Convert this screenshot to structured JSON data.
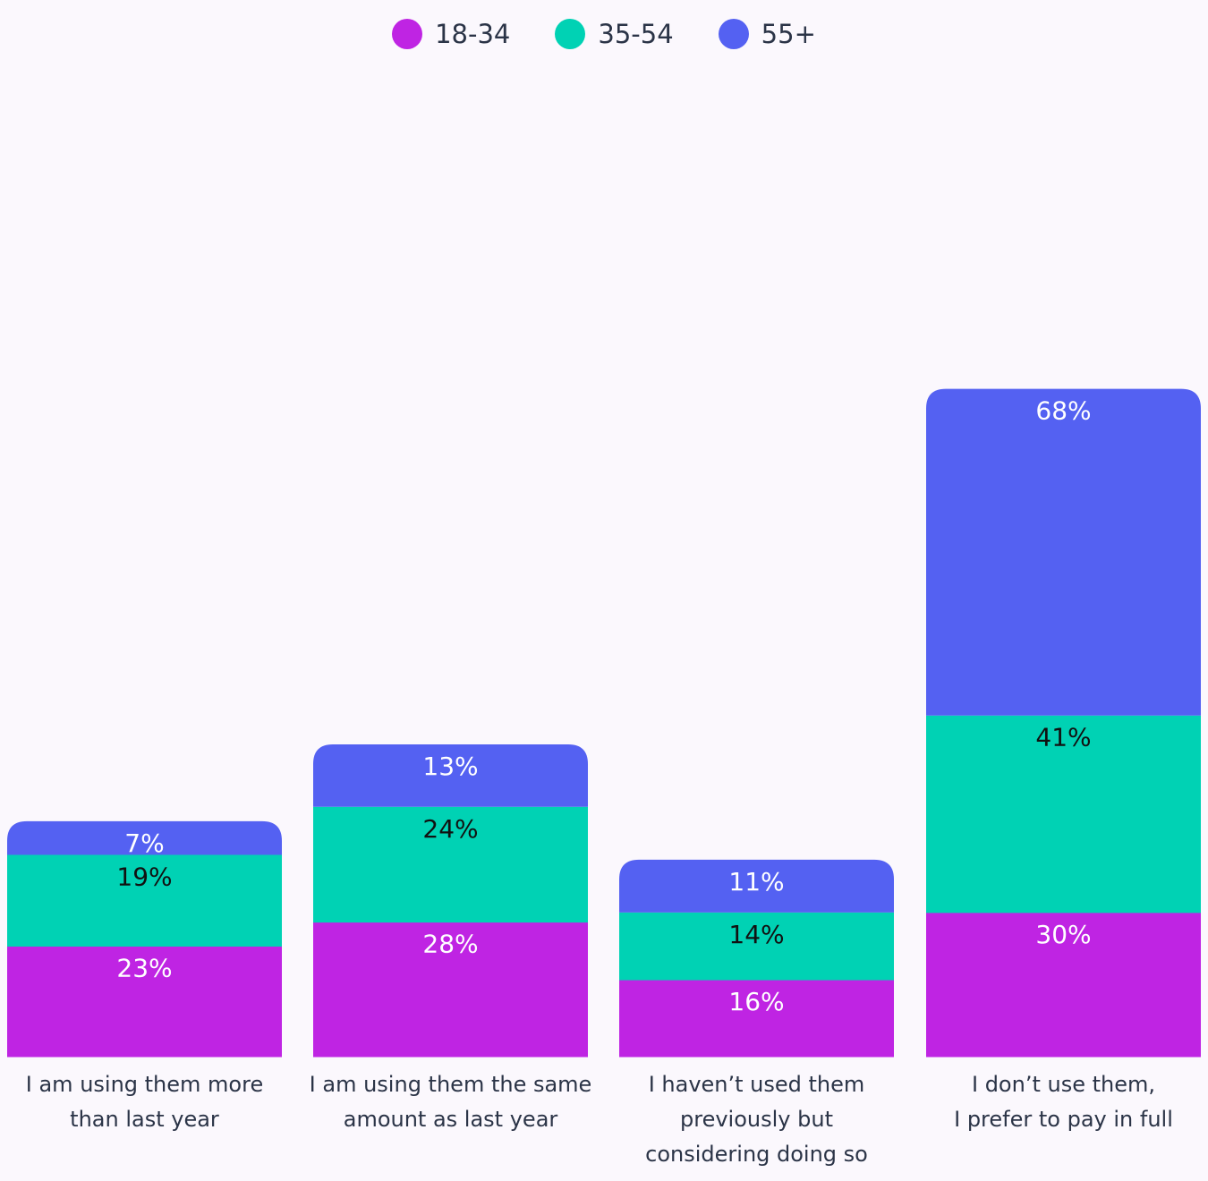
{
  "chart_data": {
    "type": "bar",
    "stacked": true,
    "categories": [
      [
        "I am using them more",
        "than last year"
      ],
      [
        "I am using them the same",
        "amount as last year"
      ],
      [
        "I haven’t used them",
        "previously but",
        "considering doing so"
      ],
      [
        "I don’t use them,",
        "I prefer to pay in full"
      ]
    ],
    "series": [
      {
        "name": "18-34",
        "color": "#bf24e3",
        "label_color": "#ffffff",
        "values": [
          23,
          28,
          16,
          30
        ]
      },
      {
        "name": "35-54",
        "color": "#00d2b4",
        "label_color": "#111111",
        "values": [
          19,
          24,
          14,
          41
        ]
      },
      {
        "name": "55+",
        "color": "#5461f2",
        "label_color": "#ffffff",
        "values": [
          7,
          13,
          11,
          68
        ]
      }
    ],
    "value_suffix": "%",
    "legend_position": "top-center",
    "grid": false,
    "title": "",
    "xlabel": "",
    "ylabel": ""
  }
}
